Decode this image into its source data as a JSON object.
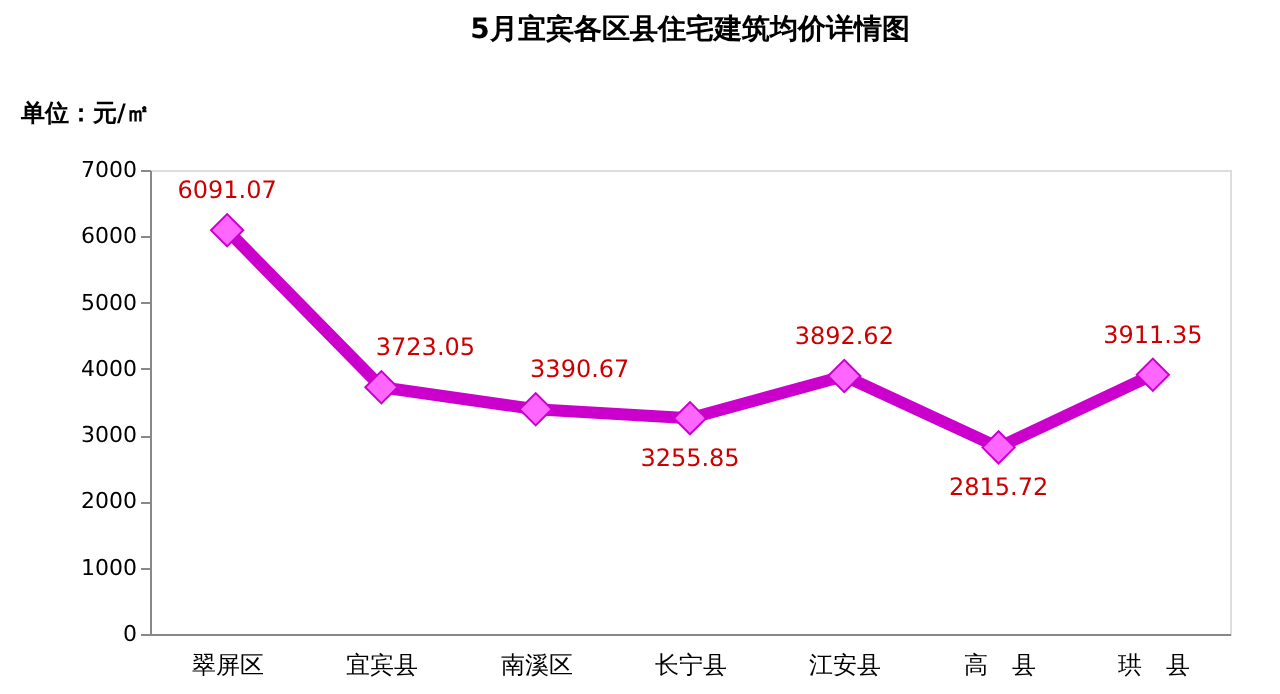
{
  "chart_data": {
    "type": "line",
    "title": "5月宜宾各区县住宅建筑均价详情图",
    "ylabel": "单位：元/㎡",
    "categories": [
      "翠屏区",
      "宜宾县",
      "南溪区",
      "长宁县",
      "江安县",
      "高　县",
      "珙　县"
    ],
    "series": [
      {
        "color": "#cc00cc",
        "values": [
          6091.07,
          3723.05,
          3390.67,
          3255.85,
          3892.62,
          2815.72,
          3911.35
        ]
      }
    ],
    "ylim": [
      0,
      7000
    ],
    "yticks": [
      0,
      1000,
      2000,
      3000,
      4000,
      5000,
      6000,
      7000
    ],
    "grid": false,
    "marker": "diamond",
    "line_style": "solid",
    "data_labels": true
  }
}
